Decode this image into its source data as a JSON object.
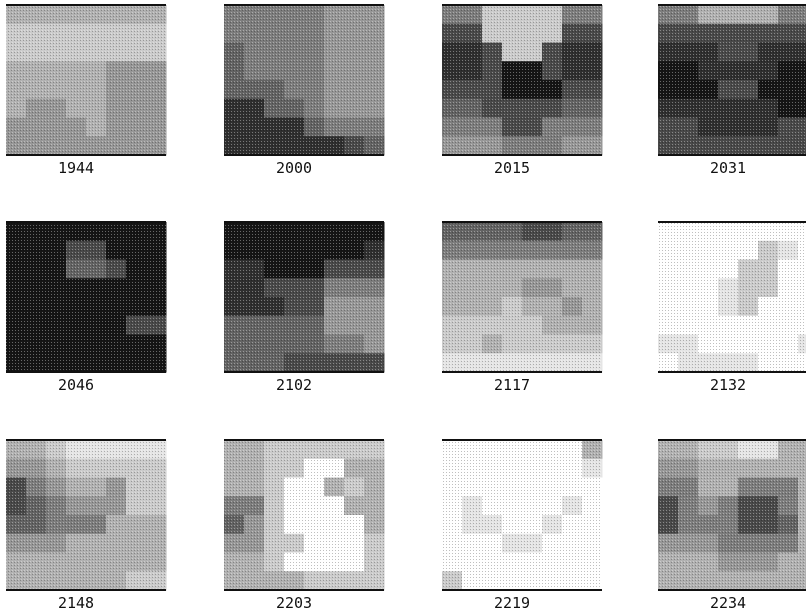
{
  "panels": [
    {
      "label": "1944"
    },
    {
      "label": "2000"
    },
    {
      "label": "2015"
    },
    {
      "label": "2031"
    },
    {
      "label": "2046"
    },
    {
      "label": "2102"
    },
    {
      "label": "2117"
    },
    {
      "label": "2132"
    },
    {
      "label": "2148"
    },
    {
      "label": "2203"
    },
    {
      "label": "2219"
    },
    {
      "label": "2234"
    }
  ]
}
